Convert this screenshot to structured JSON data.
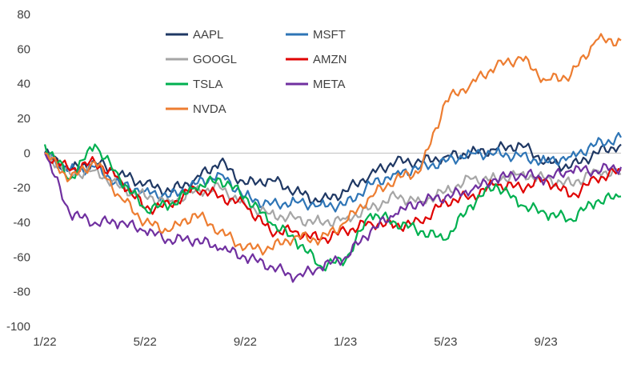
{
  "chart_data": {
    "type": "line",
    "title": "",
    "xlabel": "",
    "ylabel": "",
    "ylim": [
      -100,
      80
    ],
    "yticks": [
      80,
      60,
      40,
      20,
      0,
      -20,
      -40,
      -60,
      -80,
      -100
    ],
    "xlim": [
      "2022-01",
      "2023-12"
    ],
    "xticks": [
      {
        "label": "1/22",
        "month": "2022-01"
      },
      {
        "label": "5/22",
        "month": "2022-05"
      },
      {
        "label": "9/22",
        "month": "2022-09"
      },
      {
        "label": "1/23",
        "month": "2023-01"
      },
      {
        "label": "5/23",
        "month": "2023-05"
      },
      {
        "label": "9/23",
        "month": "2023-09"
      }
    ],
    "grid": false,
    "legend_position": "top-center",
    "x": [
      "2022-01",
      "2022-02",
      "2022-03",
      "2022-04",
      "2022-05",
      "2022-06",
      "2022-07",
      "2022-08",
      "2022-09",
      "2022-10",
      "2022-11",
      "2022-12",
      "2023-01",
      "2023-02",
      "2023-03",
      "2023-04",
      "2023-05",
      "2023-06",
      "2023-07",
      "2023-08",
      "2023-09",
      "2023-10",
      "2023-11",
      "2023-12"
    ],
    "series": [
      {
        "name": "AAPL",
        "color": "#1f3864",
        "values": [
          0,
          -10,
          -5,
          -12,
          -18,
          -22,
          -15,
          -5,
          -18,
          -15,
          -22,
          -28,
          -22,
          -12,
          -5,
          -5,
          -2,
          0,
          2,
          5,
          -5,
          -8,
          0,
          5
        ]
      },
      {
        "name": "MSFT",
        "color": "#2e75b6",
        "values": [
          0,
          -10,
          -8,
          -18,
          -22,
          -25,
          -18,
          -12,
          -25,
          -30,
          -28,
          -30,
          -30,
          -18,
          -12,
          -8,
          -5,
          0,
          0,
          -2,
          -5,
          -2,
          5,
          9
        ]
      },
      {
        "name": "GOOGL",
        "color": "#a6a6a6",
        "values": [
          0,
          -12,
          -10,
          -20,
          -25,
          -28,
          -22,
          -20,
          -30,
          -35,
          -38,
          -40,
          -38,
          -32,
          -25,
          -28,
          -22,
          -15,
          -15,
          -12,
          -15,
          -18,
          -10,
          -12
        ]
      },
      {
        "name": "AMZN",
        "color": "#e00000",
        "values": [
          0,
          -10,
          -5,
          -15,
          -32,
          -30,
          -20,
          -25,
          -30,
          -45,
          -45,
          -50,
          -45,
          -40,
          -42,
          -40,
          -28,
          -25,
          -18,
          -20,
          -15,
          -25,
          -15,
          -10
        ]
      },
      {
        "name": "TSLA",
        "color": "#00b050",
        "values": [
          5,
          -15,
          5,
          -15,
          -32,
          -30,
          -20,
          -15,
          -25,
          -40,
          -50,
          -65,
          -62,
          -35,
          -40,
          -45,
          -50,
          -30,
          -18,
          -30,
          -35,
          -38,
          -28,
          -25
        ]
      },
      {
        "name": "META",
        "color": "#7030a0",
        "values": [
          0,
          -35,
          -40,
          -40,
          -45,
          -50,
          -50,
          -55,
          -60,
          -65,
          -72,
          -66,
          -60,
          -45,
          -35,
          -28,
          -25,
          -22,
          -15,
          -12,
          -15,
          -10,
          -10,
          -8
        ]
      },
      {
        "name": "NVDA",
        "color": "#ed7d31",
        "values": [
          0,
          -15,
          -5,
          -25,
          -40,
          -45,
          -35,
          -45,
          -55,
          -55,
          -48,
          -50,
          -40,
          -25,
          -15,
          -10,
          30,
          40,
          50,
          55,
          42,
          45,
          65,
          65
        ]
      }
    ]
  }
}
